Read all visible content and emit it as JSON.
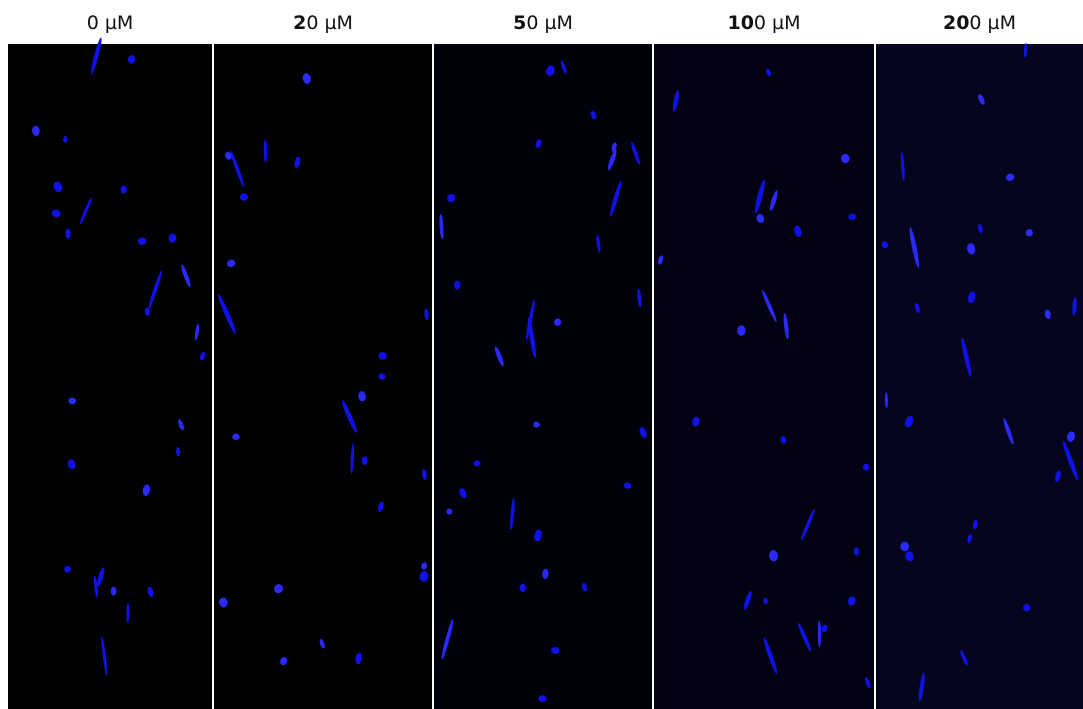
{
  "panels": [
    {
      "label": {
        "plain": "0 µM"
      }
    },
    {
      "label": {
        "bold": "2",
        "plain": "0 µM"
      }
    },
    {
      "label": {
        "bold": "5",
        "plain": "0 µM"
      }
    },
    {
      "label": {
        "bold": "10",
        "plain": "0 µM"
      }
    },
    {
      "label": {
        "bold": "20",
        "plain": "0 µM"
      }
    }
  ]
}
